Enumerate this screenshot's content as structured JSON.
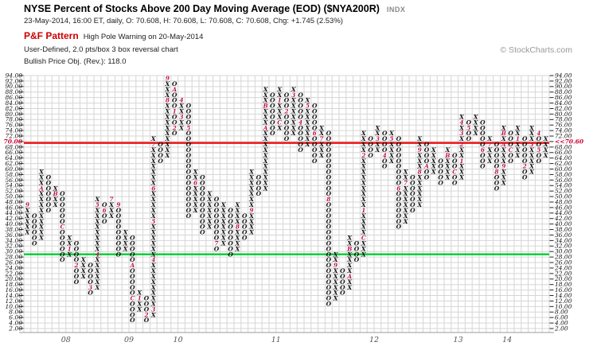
{
  "header": {
    "title": "NYSE Percent of Stocks Above 200 Day Moving Average (EOD) ($NYA200R)",
    "index_tag": "INDX",
    "quote_line": "23-May-2014, 16:00 ET, daily, O: 70.608, H: 70.608, L: 70.608, C: 70.608, Chg: +1.745 (2.53%)",
    "pattern_label": "P&F Pattern",
    "pattern_text": "High Pole Warning on 20-May-2014",
    "definition_line": "User-Defined, 2.0 pts/box 3 box reversal chart",
    "objective_line": "Bullish Price Obj. (Rev.): 118.0",
    "copyright": "© StockCharts.com"
  },
  "colors": {
    "glyph": "#111111",
    "month_mark": "#c2154f",
    "grid": "#d6d6d6",
    "axis_dash": "#222222",
    "axis_text": "#111111",
    "year_text": "#555555",
    "red_line": "#ee1111",
    "green_line": "#00cc33",
    "highlight_label": "#cc0033",
    "bottom_axis": "#999999"
  },
  "chart_data": {
    "type": "point-and-figure",
    "title": "NYSE Percent of Stocks Above 200 Day Moving Average",
    "box_size": 2.0,
    "reversal": 3,
    "ylim": [
      2,
      94
    ],
    "ytick_step": 2,
    "grid": true,
    "y_axis_highlight": {
      "value": 70,
      "left_label": "70.00",
      "right_label": "<<70.60"
    },
    "overlay_lines": [
      {
        "name": "resistance-line",
        "value": 69.5,
        "color_key": "red_line"
      },
      {
        "name": "support-line",
        "value": 29,
        "color_key": "green_line"
      }
    ],
    "x_year_labels": [
      {
        "label": "08",
        "col": 6
      },
      {
        "label": "09",
        "col": 15
      },
      {
        "label": "10",
        "col": 22
      },
      {
        "label": "11",
        "col": 36
      },
      {
        "label": "12",
        "col": 50
      },
      {
        "label": "13",
        "col": 62
      },
      {
        "label": "14",
        "col": 69
      }
    ],
    "columns": [
      {
        "t": "X",
        "lo": 36,
        "hi": 46,
        "m": {
          "46": "9"
        }
      },
      {
        "t": "O",
        "lo": 32,
        "hi": 42
      },
      {
        "t": "X",
        "lo": 34,
        "hi": 58,
        "m": {
          "52": "A"
        }
      },
      {
        "t": "O",
        "lo": 44,
        "hi": 56
      },
      {
        "t": "X",
        "lo": 46,
        "hi": 52,
        "m": {
          "50": "B"
        }
      },
      {
        "t": "O",
        "lo": 26,
        "hi": 50,
        "m": {
          "38": "C"
        }
      },
      {
        "t": "X",
        "lo": 28,
        "hi": 34,
        "m": {
          "30": "1"
        }
      },
      {
        "t": "O",
        "lo": 18,
        "hi": 32,
        "m": {
          "24": "2"
        }
      },
      {
        "t": "X",
        "lo": 20,
        "hi": 26
      },
      {
        "t": "O",
        "lo": 14,
        "hi": 24,
        "m": {
          "16": "3"
        }
      },
      {
        "t": "X",
        "lo": 16,
        "hi": 48,
        "m": {
          "28": "4",
          "46": "5"
        }
      },
      {
        "t": "O",
        "lo": 40,
        "hi": 46,
        "m": {
          "44": "6"
        }
      },
      {
        "t": "X",
        "lo": 42,
        "hi": 48,
        "m": {
          "48": "7"
        }
      },
      {
        "t": "O",
        "lo": 28,
        "hi": 46,
        "m": {
          "46": "9"
        }
      },
      {
        "t": "X",
        "lo": 30,
        "hi": 36
      },
      {
        "t": "O",
        "lo": 4,
        "hi": 34,
        "m": {
          "24": "A",
          "12": "C"
        }
      },
      {
        "t": "X",
        "lo": 8,
        "hi": 14,
        "m": {
          "12": "1"
        }
      },
      {
        "t": "O",
        "lo": 4,
        "hi": 12,
        "m": {
          "6": "2"
        }
      },
      {
        "t": "X",
        "lo": 6,
        "hi": 70,
        "m": {
          "8": "3",
          "26": "4",
          "40": "5",
          "52": "6",
          "68": "7"
        }
      },
      {
        "t": "O",
        "lo": 62,
        "hi": 68
      },
      {
        "t": "X",
        "lo": 64,
        "hi": 92,
        "m": {
          "84": "8",
          "92": "9"
        }
      },
      {
        "t": "O",
        "lo": 72,
        "hi": 90,
        "m": {
          "88": "A",
          "80": "1",
          "74": "2"
        }
      },
      {
        "t": "X",
        "lo": 74,
        "hi": 84,
        "m": {
          "78": "3",
          "84": "4"
        }
      },
      {
        "t": "O",
        "lo": 42,
        "hi": 82,
        "m": {
          "74": "5"
        }
      },
      {
        "t": "X",
        "lo": 44,
        "hi": 58,
        "m": {
          "54": "6"
        }
      },
      {
        "t": "O",
        "lo": 36,
        "hi": 56
      },
      {
        "t": "X",
        "lo": 38,
        "hi": 50
      },
      {
        "t": "O",
        "lo": 30,
        "hi": 48,
        "m": {
          "32": "7"
        }
      },
      {
        "t": "X",
        "lo": 32,
        "hi": 46
      },
      {
        "t": "O",
        "lo": 28,
        "hi": 44
      },
      {
        "t": "X",
        "lo": 30,
        "hi": 46,
        "m": {
          "38": "8"
        }
      },
      {
        "t": "O",
        "lo": 34,
        "hi": 42
      },
      {
        "t": "X",
        "lo": 36,
        "hi": 58,
        "m": {
          "44": "9"
        }
      },
      {
        "t": "O",
        "lo": 50,
        "hi": 56
      },
      {
        "t": "X",
        "lo": 52,
        "hi": 88,
        "m": {
          "74": "A",
          "82": "B"
        }
      },
      {
        "t": "O",
        "lo": 72,
        "hi": 86
      },
      {
        "t": "X",
        "lo": 74,
        "hi": 88,
        "m": {
          "76": "C",
          "84": "1"
        }
      },
      {
        "t": "O",
        "lo": 70,
        "hi": 86,
        "m": {
          "80": "2"
        }
      },
      {
        "t": "X",
        "lo": 72,
        "hi": 88,
        "m": {
          "86": "3"
        }
      },
      {
        "t": "O",
        "lo": 66,
        "hi": 86,
        "m": {
          "76": "4"
        }
      },
      {
        "t": "X",
        "lo": 68,
        "hi": 84,
        "m": {
          "82": "5"
        }
      },
      {
        "t": "O",
        "lo": 62,
        "hi": 82,
        "m": {
          "72": "6"
        }
      },
      {
        "t": "X",
        "lo": 64,
        "hi": 74,
        "m": {
          "70": "7"
        }
      },
      {
        "t": "O",
        "lo": 10,
        "hi": 72,
        "m": {
          "48": "8"
        }
      },
      {
        "t": "X",
        "lo": 12,
        "hi": 28,
        "m": {
          "24": "9"
        }
      },
      {
        "t": "O",
        "lo": 14,
        "hi": 22
      },
      {
        "t": "X",
        "lo": 16,
        "hi": 34,
        "m": {
          "20": "A",
          "30": "B"
        }
      },
      {
        "t": "O",
        "lo": 26,
        "hi": 32
      },
      {
        "t": "X",
        "lo": 28,
        "hi": 72,
        "m": {
          "34": "C",
          "44": "1",
          "64": "2"
        }
      },
      {
        "t": "O",
        "lo": 64,
        "hi": 70
      },
      {
        "t": "X",
        "lo": 66,
        "hi": 74,
        "m": {
          "70": "3"
        }
      },
      {
        "t": "O",
        "lo": 60,
        "hi": 72,
        "m": {
          "64": "4"
        }
      },
      {
        "t": "X",
        "lo": 62,
        "hi": 72,
        "m": {
          "70": "5"
        }
      },
      {
        "t": "O",
        "lo": 38,
        "hi": 70,
        "m": {
          "52": "6"
        }
      },
      {
        "t": "X",
        "lo": 40,
        "hi": 58,
        "m": {
          "54": "7"
        }
      },
      {
        "t": "O",
        "lo": 44,
        "hi": 56
      },
      {
        "t": "X",
        "lo": 46,
        "hi": 70,
        "m": {
          "58": "8",
          "66": "9"
        }
      },
      {
        "t": "O",
        "lo": 56,
        "hi": 68,
        "m": {
          "60": "A"
        }
      },
      {
        "t": "X",
        "lo": 58,
        "hi": 66
      },
      {
        "t": "O",
        "lo": 54,
        "hi": 62
      },
      {
        "t": "X",
        "lo": 56,
        "hi": 66,
        "m": {
          "64": "B"
        }
      },
      {
        "t": "O",
        "lo": 54,
        "hi": 64,
        "m": {
          "58": "C"
        }
      },
      {
        "t": "X",
        "lo": 56,
        "hi": 78,
        "m": {
          "62": "1",
          "68": "2",
          "72": "3",
          "76": "4"
        }
      },
      {
        "t": "O",
        "lo": 70,
        "hi": 76,
        "m": {
          "74": "5"
        }
      },
      {
        "t": "X",
        "lo": 72,
        "hi": 78
      },
      {
        "t": "O",
        "lo": 60,
        "hi": 76,
        "m": {
          "66": "6"
        }
      },
      {
        "t": "X",
        "lo": 62,
        "hi": 70,
        "m": {
          "68": "7"
        }
      },
      {
        "t": "O",
        "lo": 52,
        "hi": 68,
        "m": {
          "58": "8"
        }
      },
      {
        "t": "X",
        "lo": 54,
        "hi": 74,
        "m": {
          "60": "9",
          "68": "A",
          "72": "B"
        }
      },
      {
        "t": "O",
        "lo": 62,
        "hi": 72,
        "m": {
          "66": "C"
        }
      },
      {
        "t": "X",
        "lo": 64,
        "hi": 74,
        "m": {
          "70": "1"
        }
      },
      {
        "t": "O",
        "lo": 56,
        "hi": 70,
        "m": {
          "60": "2"
        }
      },
      {
        "t": "X",
        "lo": 58,
        "hi": 74,
        "m": {
          "68": "3"
        }
      },
      {
        "t": "O",
        "lo": 62,
        "hi": 72,
        "m": {
          "72": "4",
          "66": "5"
        }
      },
      {
        "t": "X",
        "lo": 64,
        "hi": 70
      }
    ]
  }
}
